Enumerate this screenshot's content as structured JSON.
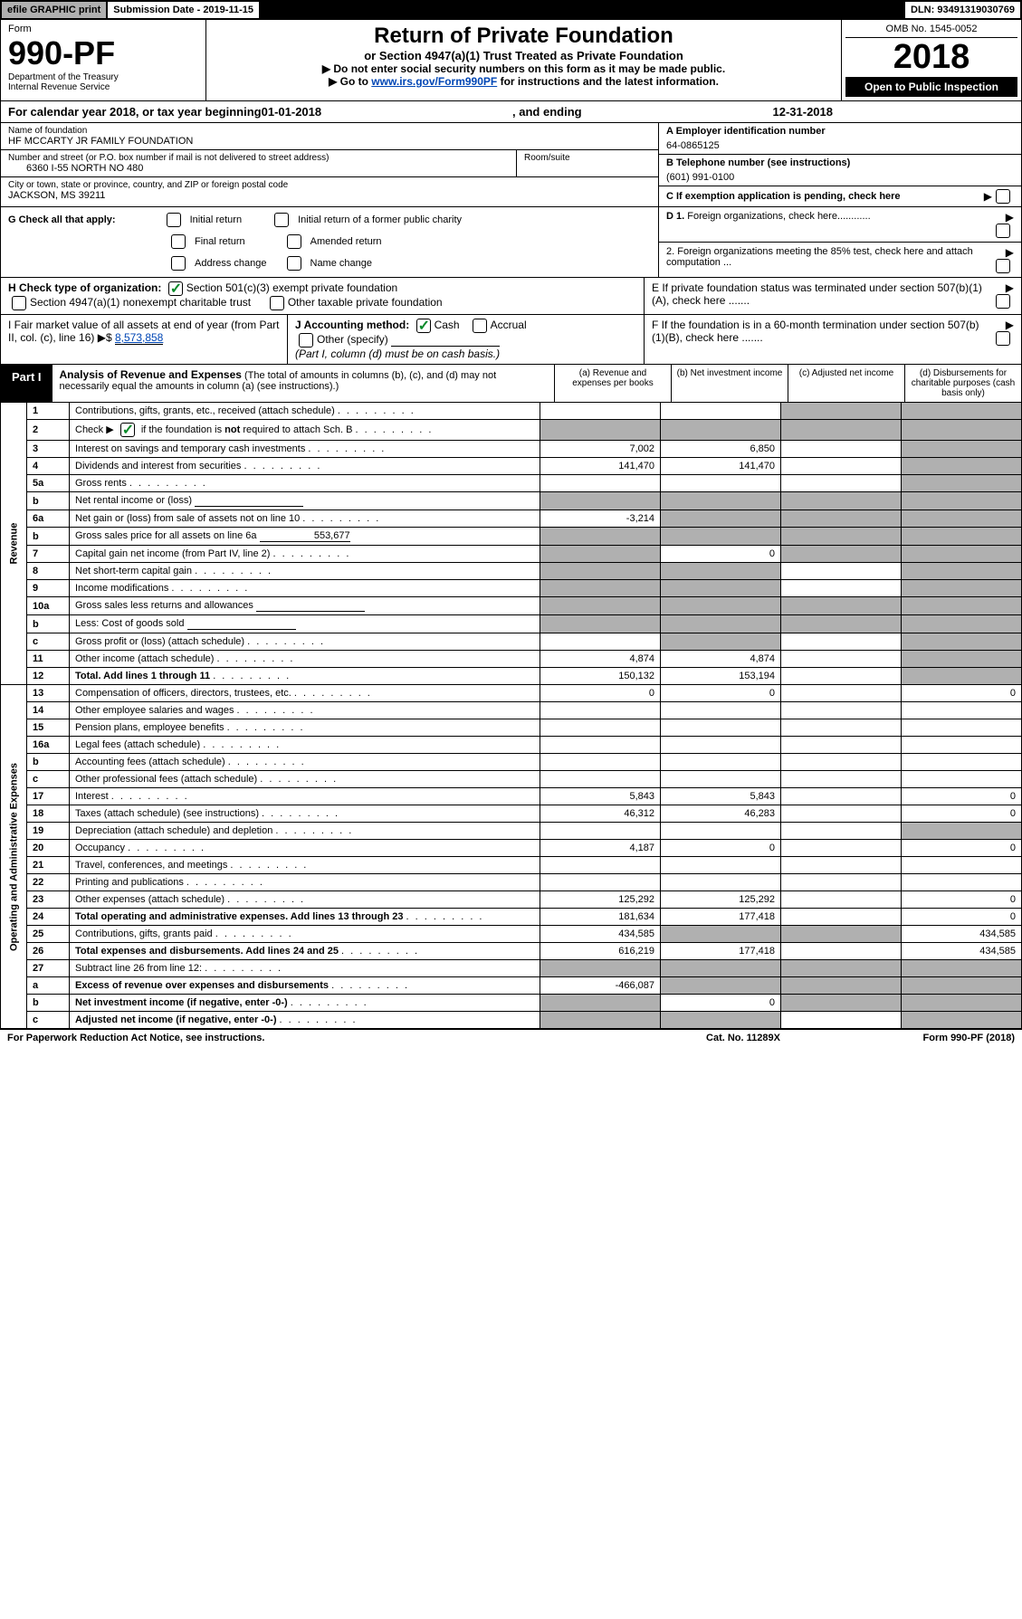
{
  "top": {
    "efile": "efile GRAPHIC print",
    "submission": "Submission Date - 2019-11-15",
    "dln": "DLN: 93491319030769"
  },
  "header": {
    "form_label": "Form",
    "form_no": "990-PF",
    "dept": "Department of the Treasury",
    "irs": "Internal Revenue Service",
    "title": "Return of Private Foundation",
    "subtitle": "or Section 4947(a)(1) Trust Treated as Private Foundation",
    "note1": "▶ Do not enter social security numbers on this form as it may be made public.",
    "note2_pre": "▶ Go to ",
    "note2_link": "www.irs.gov/Form990PF",
    "note2_post": " for instructions and the latest information.",
    "omb": "OMB No. 1545-0052",
    "year": "2018",
    "open": "Open to Public Inspection"
  },
  "cal_year": {
    "prefix": "For calendar year 2018, or tax year beginning ",
    "begin": "01-01-2018",
    "mid": ", and ending ",
    "end": "12-31-2018"
  },
  "info": {
    "name_label": "Name of foundation",
    "name": "HF MCCARTY JR FAMILY FOUNDATION",
    "addr_label": "Number and street (or P.O. box number if mail is not delivered to street address)",
    "addr": "6360 I-55 NORTH NO 480",
    "room_label": "Room/suite",
    "city_label": "City or town, state or province, country, and ZIP or foreign postal code",
    "city": "JACKSON, MS  39211",
    "ein_label": "A Employer identification number",
    "ein": "64-0865125",
    "phone_label": "B Telephone number (see instructions)",
    "phone": "(601) 991-0100",
    "c_label": "C  If exemption application is pending, check here"
  },
  "g": {
    "label": "G Check all that apply:",
    "opts": [
      "Initial return",
      "Initial return of a former public charity",
      "Final return",
      "Amended return",
      "Address change",
      "Name change"
    ]
  },
  "d": {
    "d1": "D 1. Foreign organizations, check here............",
    "d2": "2. Foreign organizations meeting the 85% test, check here and attach computation ...",
    "e": "E  If private foundation status was terminated under section 507(b)(1)(A), check here .......",
    "f": "F  If the foundation is in a 60-month termination under section 507(b)(1)(B), check here ......."
  },
  "h": {
    "label": "H Check type of organization:",
    "opt1": "Section 501(c)(3) exempt private foundation",
    "opt2": "Section 4947(a)(1) nonexempt charitable trust",
    "opt3": "Other taxable private foundation"
  },
  "i": {
    "label": "I Fair market value of all assets at end of year (from Part II, col. (c), line 16)",
    "arrow": "▶$",
    "value": "8,573,858",
    "j_label": "J Accounting method:",
    "j_cash": "Cash",
    "j_accrual": "Accrual",
    "j_other": "Other (specify)",
    "j_note": "(Part I, column (d) must be on cash basis.)"
  },
  "part1": {
    "label": "Part I",
    "title": "Analysis of Revenue and Expenses",
    "desc": " (The total of amounts in columns (b), (c), and (d) may not necessarily equal the amounts in column (a) (see instructions).)",
    "col_a": "(a)   Revenue and expenses per books",
    "col_b": "(b)   Net investment income",
    "col_c": "(c)   Adjusted net income",
    "col_d": "(d)   Disbursements for charitable purposes (cash basis only)"
  },
  "side": {
    "revenue": "Revenue",
    "expenses": "Operating and Administrative Expenses"
  },
  "rows": [
    {
      "n": "1",
      "d": "Contributions, gifts, grants, etc., received (attach schedule)",
      "a": "",
      "b": "",
      "c": "shaded",
      "dv": "shaded"
    },
    {
      "n": "2",
      "d": "Check ▶ [✓] if the foundation is not required to attach Sch. B",
      "a": "shaded",
      "b": "shaded",
      "c": "shaded",
      "dv": "shaded",
      "check": true
    },
    {
      "n": "3",
      "d": "Interest on savings and temporary cash investments",
      "a": "7,002",
      "b": "6,850",
      "c": "",
      "dv": "shaded"
    },
    {
      "n": "4",
      "d": "Dividends and interest from securities",
      "a": "141,470",
      "b": "141,470",
      "c": "",
      "dv": "shaded"
    },
    {
      "n": "5a",
      "d": "Gross rents",
      "a": "",
      "b": "",
      "c": "",
      "dv": "shaded"
    },
    {
      "n": "b",
      "d": "Net rental income or (loss)",
      "a": "shaded",
      "b": "shaded",
      "c": "shaded",
      "dv": "shaded",
      "inline": true
    },
    {
      "n": "6a",
      "d": "Net gain or (loss) from sale of assets not on line 10",
      "a": "-3,214",
      "b": "shaded",
      "c": "shaded",
      "dv": "shaded"
    },
    {
      "n": "b",
      "d": "Gross sales price for all assets on line 6a",
      "inline_val": "553,677",
      "a": "shaded",
      "b": "shaded",
      "c": "shaded",
      "dv": "shaded"
    },
    {
      "n": "7",
      "d": "Capital gain net income (from Part IV, line 2)",
      "a": "shaded",
      "b": "0",
      "c": "shaded",
      "dv": "shaded"
    },
    {
      "n": "8",
      "d": "Net short-term capital gain",
      "a": "shaded",
      "b": "shaded",
      "c": "",
      "dv": "shaded"
    },
    {
      "n": "9",
      "d": "Income modifications",
      "a": "shaded",
      "b": "shaded",
      "c": "",
      "dv": "shaded"
    },
    {
      "n": "10a",
      "d": "Gross sales less returns and allowances",
      "a": "shaded",
      "b": "shaded",
      "c": "shaded",
      "dv": "shaded",
      "inline": true
    },
    {
      "n": "b",
      "d": "Less: Cost of goods sold",
      "a": "shaded",
      "b": "shaded",
      "c": "shaded",
      "dv": "shaded",
      "inline": true
    },
    {
      "n": "c",
      "d": "Gross profit or (loss) (attach schedule)",
      "a": "",
      "b": "shaded",
      "c": "",
      "dv": "shaded"
    },
    {
      "n": "11",
      "d": "Other income (attach schedule)",
      "a": "4,874",
      "b": "4,874",
      "c": "",
      "dv": "shaded"
    },
    {
      "n": "12",
      "d": "Total. Add lines 1 through 11",
      "bold": true,
      "a": "150,132",
      "b": "153,194",
      "c": "",
      "dv": "shaded"
    }
  ],
  "exp_rows": [
    {
      "n": "13",
      "d": "Compensation of officers, directors, trustees, etc.",
      "a": "0",
      "b": "0",
      "c": "",
      "dv": "0"
    },
    {
      "n": "14",
      "d": "Other employee salaries and wages",
      "a": "",
      "b": "",
      "c": "",
      "dv": ""
    },
    {
      "n": "15",
      "d": "Pension plans, employee benefits",
      "a": "",
      "b": "",
      "c": "",
      "dv": ""
    },
    {
      "n": "16a",
      "d": "Legal fees (attach schedule)",
      "a": "",
      "b": "",
      "c": "",
      "dv": ""
    },
    {
      "n": "b",
      "d": "Accounting fees (attach schedule)",
      "a": "",
      "b": "",
      "c": "",
      "dv": ""
    },
    {
      "n": "c",
      "d": "Other professional fees (attach schedule)",
      "a": "",
      "b": "",
      "c": "",
      "dv": ""
    },
    {
      "n": "17",
      "d": "Interest",
      "a": "5,843",
      "b": "5,843",
      "c": "",
      "dv": "0"
    },
    {
      "n": "18",
      "d": "Taxes (attach schedule) (see instructions)",
      "a": "46,312",
      "b": "46,283",
      "c": "",
      "dv": "0"
    },
    {
      "n": "19",
      "d": "Depreciation (attach schedule) and depletion",
      "a": "",
      "b": "",
      "c": "",
      "dv": "shaded"
    },
    {
      "n": "20",
      "d": "Occupancy",
      "a": "4,187",
      "b": "0",
      "c": "",
      "dv": "0"
    },
    {
      "n": "21",
      "d": "Travel, conferences, and meetings",
      "a": "",
      "b": "",
      "c": "",
      "dv": ""
    },
    {
      "n": "22",
      "d": "Printing and publications",
      "a": "",
      "b": "",
      "c": "",
      "dv": ""
    },
    {
      "n": "23",
      "d": "Other expenses (attach schedule)",
      "a": "125,292",
      "b": "125,292",
      "c": "",
      "dv": "0"
    },
    {
      "n": "24",
      "d": "Total operating and administrative expenses. Add lines 13 through 23",
      "bold": true,
      "a": "181,634",
      "b": "177,418",
      "c": "",
      "dv": "0"
    },
    {
      "n": "25",
      "d": "Contributions, gifts, grants paid",
      "a": "434,585",
      "b": "shaded",
      "c": "shaded",
      "dv": "434,585"
    },
    {
      "n": "26",
      "d": "Total expenses and disbursements. Add lines 24 and 25",
      "bold": true,
      "a": "616,219",
      "b": "177,418",
      "c": "",
      "dv": "434,585"
    },
    {
      "n": "27",
      "d": "Subtract line 26 from line 12:",
      "a": "shaded",
      "b": "shaded",
      "c": "shaded",
      "dv": "shaded"
    },
    {
      "n": "a",
      "d": "Excess of revenue over expenses and disbursements",
      "bold": true,
      "a": "-466,087",
      "b": "shaded",
      "c": "shaded",
      "dv": "shaded"
    },
    {
      "n": "b",
      "d": "Net investment income (if negative, enter -0-)",
      "bold": true,
      "a": "shaded",
      "b": "0",
      "c": "shaded",
      "dv": "shaded"
    },
    {
      "n": "c",
      "d": "Adjusted net income (if negative, enter -0-)",
      "bold": true,
      "a": "shaded",
      "b": "shaded",
      "c": "",
      "dv": "shaded"
    }
  ],
  "footer": {
    "left": "For Paperwork Reduction Act Notice, see instructions.",
    "mid": "Cat. No. 11289X",
    "right": "Form 990-PF (2018)"
  }
}
